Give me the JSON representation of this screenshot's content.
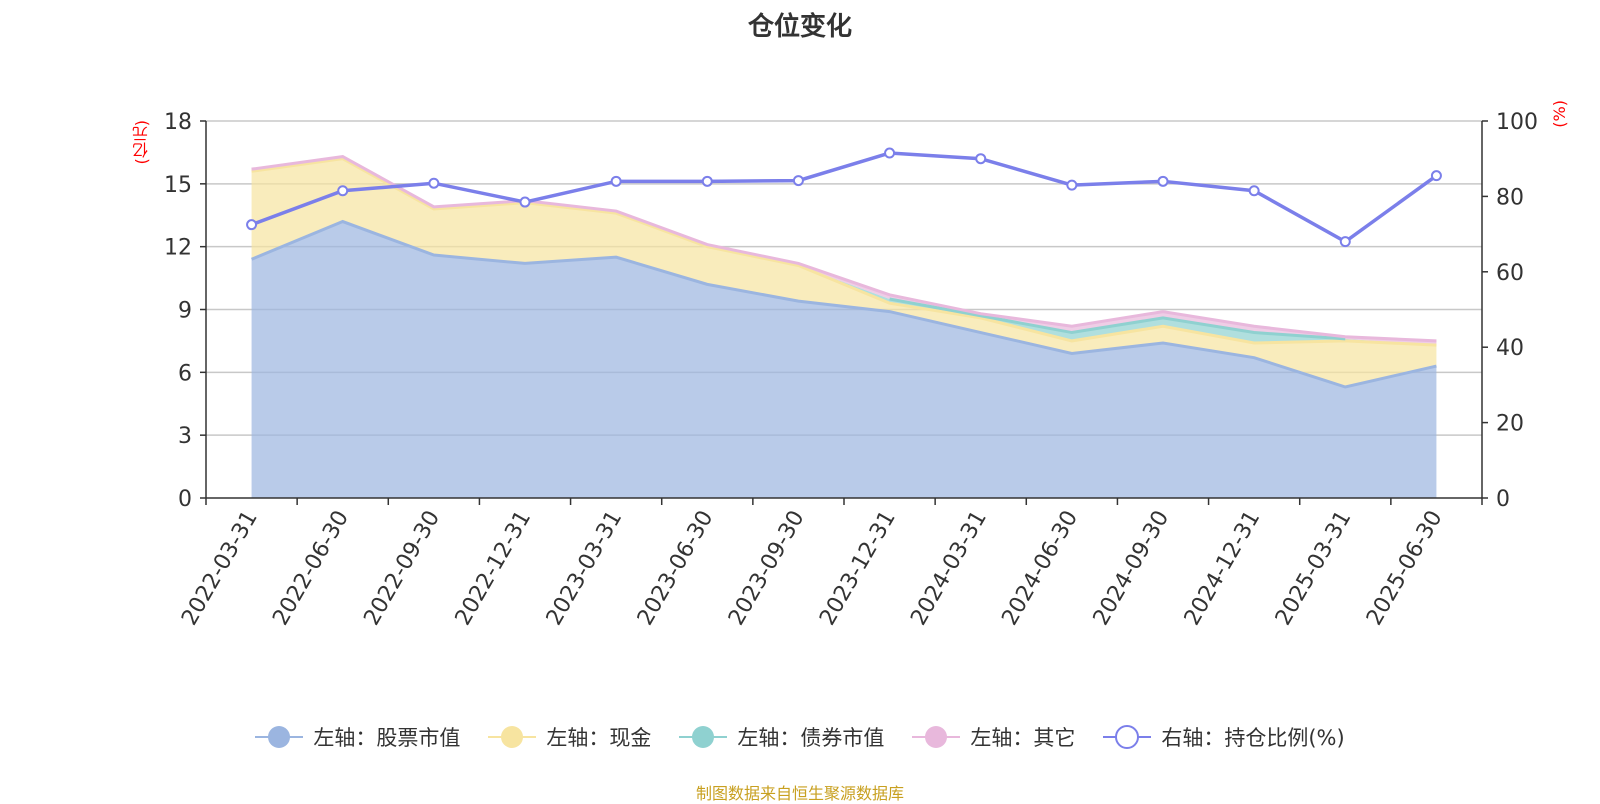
{
  "chart_data": {
    "type": "area",
    "title": "仓位变化",
    "left_unit": "(亿元)",
    "right_unit": "(%)",
    "categories": [
      "2022-03-31",
      "2022-06-30",
      "2022-09-30",
      "2022-12-31",
      "2023-03-31",
      "2023-06-30",
      "2023-09-30",
      "2023-12-31",
      "2024-03-31",
      "2024-06-30",
      "2024-09-30",
      "2024-12-31",
      "2025-03-31",
      "2025-06-30"
    ],
    "left_axis": {
      "min": 0,
      "max": 18,
      "ticks": [
        0,
        3,
        6,
        9,
        12,
        15,
        18
      ]
    },
    "right_axis": {
      "min": 0,
      "max": 100,
      "ticks": [
        0,
        20,
        40,
        60,
        80,
        100
      ]
    },
    "stacked_series": [
      {
        "name": "左轴：股票市值",
        "color": "#9bb5e0",
        "values": [
          11.4,
          13.2,
          11.6,
          11.2,
          11.5,
          10.2,
          9.4,
          8.9,
          7.9,
          6.9,
          7.4,
          6.7,
          5.3,
          6.3
        ]
      },
      {
        "name": "左轴：现金",
        "color": "#f7e4a0",
        "values": [
          4.2,
          3.0,
          2.2,
          2.9,
          2.1,
          1.8,
          1.7,
          0.4,
          0.7,
          0.6,
          0.8,
          0.7,
          2.2,
          1.0
        ]
      },
      {
        "name": "左轴：债券市值",
        "color": "#8fd1d0",
        "values": [
          0,
          0,
          0,
          0,
          0,
          0,
          0,
          0.2,
          0.1,
          0.4,
          0.4,
          0.5,
          0.1,
          0
        ]
      },
      {
        "name": "左轴：其它",
        "color": "#e8b8dc",
        "values": [
          0.1,
          0.1,
          0.1,
          0.1,
          0.1,
          0.1,
          0.1,
          0.2,
          0.1,
          0.3,
          0.3,
          0.3,
          0.1,
          0.2
        ]
      }
    ],
    "line_series": {
      "name": "右轴：持仓比例(%)",
      "color": "#7b7fea",
      "values": [
        72.5,
        81.5,
        83.5,
        78.5,
        84.0,
        84.0,
        84.2,
        91.5,
        90.0,
        83.0,
        84.0,
        81.5,
        68.0,
        85.5
      ]
    },
    "grid": true,
    "legend_position": "bottom"
  },
  "source": "制图数据来自恒生聚源数据库"
}
